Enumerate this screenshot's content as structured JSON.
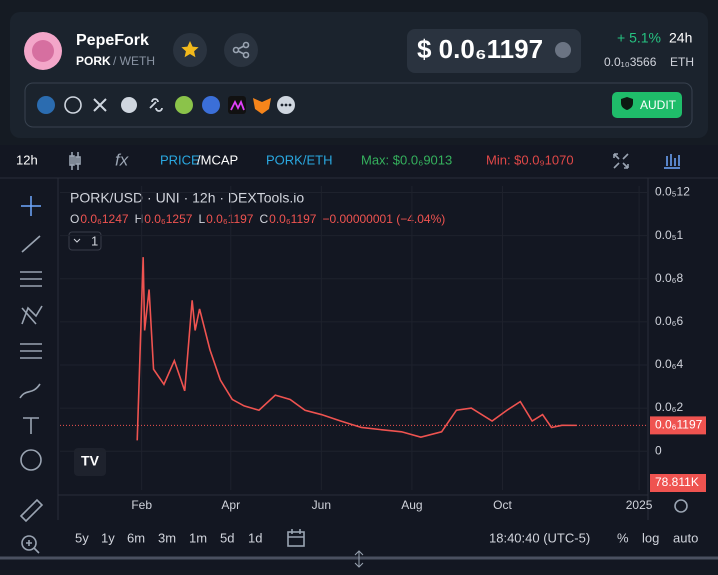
{
  "header": {
    "name": "PepeFork",
    "base": "PORK",
    "quote": "/ WETH",
    "price": "$ 0.0₆1197",
    "change": "+ 5.1%",
    "period": "24h",
    "eth_price": "0.0₁₀3566",
    "eth_unit": "ETH",
    "audit": "AUDIT"
  },
  "toolbar": {
    "interval": "12h",
    "price": "PRICE",
    "mcap": "/MCAP",
    "pair": "PORK/ETH",
    "max": "Max: $0.0₆9013",
    "min": "Min: $0.0₉1070"
  },
  "chart_data": {
    "type": "line",
    "title": "PORK/USD · UNI · 12h · DEXTools.io",
    "ohlc": [
      {
        "key": "O",
        "value": "0.0₆1247"
      },
      {
        "key": "H",
        "value": "0.0₆1257"
      },
      {
        "key": "L",
        "value": "0.0₆1197"
      },
      {
        "key": "C",
        "value": "0.0₆1197"
      }
    ],
    "change": "−0.00000001 (−4.04%)",
    "series_count": "1",
    "x": [
      28,
      32,
      33,
      36,
      39,
      46,
      53,
      60,
      65,
      67,
      70,
      77,
      84,
      92,
      100,
      110,
      121,
      131,
      141,
      152,
      165,
      179,
      192,
      206,
      219,
      233,
      243,
      253,
      267,
      277,
      286,
      294,
      301,
      307,
      314,
      324
    ],
    "values": [
      5e-08,
      9e-07,
      5.6e-07,
      7.5e-07,
      3.8e-07,
      3.1e-07,
      4.2e-07,
      2.8e-07,
      7e-07,
      5.6e-07,
      6.6e-07,
      4.7e-07,
      3.3e-07,
      2.4e-07,
      2.1e-07,
      1.9e-07,
      2.6e-07,
      2.4e-07,
      1.9e-07,
      1.7e-07,
      1.4e-07,
      1.1e-07,
      1e-07,
      9e-08,
      6.5e-08,
      9e-08,
      1.9e-07,
      2e-07,
      1.4e-07,
      1.9e-07,
      2.3e-07,
      1.4e-07,
      1.7e-07,
      1.1e-07,
      1.2e-07,
      1.197e-07
    ],
    "color": "#ef5350",
    "last_price": {
      "value": 1.197e-07,
      "label": "0.0₆1197"
    },
    "volume_label": "78.811K",
    "xlim": [
      -24,
      372
    ],
    "xticks": [
      {
        "value": 31,
        "label": "Feb"
      },
      {
        "value": 91,
        "label": "Apr"
      },
      {
        "value": 152,
        "label": "Jun"
      },
      {
        "value": 213,
        "label": "Aug"
      },
      {
        "value": 274,
        "label": "Oct"
      },
      {
        "value": 366,
        "label": "2025"
      }
    ],
    "ylim": [
      -1.8e-07,
      1.23e-06
    ],
    "yticks": [
      {
        "value": 1.2e-06,
        "label": "0.0₅12"
      },
      {
        "value": 1e-06,
        "label": "0.0₅1"
      },
      {
        "value": 8e-07,
        "label": "0.0₆8"
      },
      {
        "value": 6e-07,
        "label": "0.0₆6"
      },
      {
        "value": 4e-07,
        "label": "0.0₆4"
      },
      {
        "value": 2e-07,
        "label": "0.0₆2"
      },
      0
    ],
    "grid": true
  },
  "footer": {
    "ranges": [
      "5y",
      "1y",
      "6m",
      "3m",
      "1m",
      "5d",
      "1d"
    ],
    "time": "18:40:40 (UTC-5)",
    "percent": "%",
    "log": "log",
    "auto": "auto"
  }
}
